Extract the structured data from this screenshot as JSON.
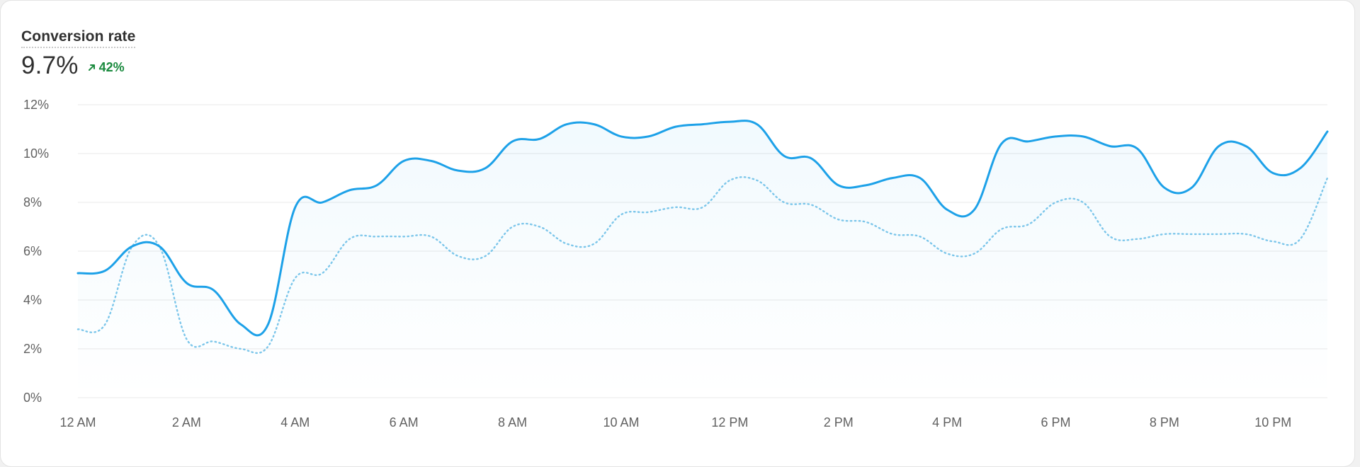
{
  "card": {
    "title": "Conversion rate",
    "value": "9.7%",
    "change": "42%",
    "change_direction": "up",
    "change_color": "#1a8a3e"
  },
  "colors": {
    "primary_line": "#1da1e8",
    "comparison_line": "#7cc6ea",
    "gridline": "#e8e8e8",
    "tick_text": "#616161"
  },
  "chart_data": {
    "type": "area",
    "x_tick_labels": [
      "12 AM",
      "2 AM",
      "4 AM",
      "6 AM",
      "8 AM",
      "10 AM",
      "12 PM",
      "2 PM",
      "4 PM",
      "6 PM",
      "8 PM",
      "10 PM"
    ],
    "y_tick_labels": [
      "0%",
      "2%",
      "4%",
      "6%",
      "8%",
      "10%",
      "12%"
    ],
    "ylim": [
      0,
      12
    ],
    "xlim": [
      0,
      23
    ],
    "grid": true,
    "series": [
      {
        "style": "solid-filled",
        "x": [
          0,
          0.5,
          1,
          1.5,
          2,
          2.5,
          3,
          3.5,
          4,
          4.5,
          5,
          5.5,
          6,
          6.5,
          7,
          7.5,
          8,
          8.5,
          9,
          9.5,
          10,
          10.5,
          11,
          11.5,
          12,
          12.5,
          13,
          13.5,
          14,
          14.5,
          15,
          15.5,
          16,
          16.5,
          17,
          17.5,
          18,
          18.5,
          19,
          19.5,
          20,
          20.5,
          21,
          21.5,
          22,
          22.5,
          23
        ],
        "values": [
          5.1,
          5.2,
          6.2,
          6.2,
          4.7,
          4.4,
          3.0,
          3.0,
          7.8,
          8.0,
          8.5,
          8.7,
          9.7,
          9.7,
          9.3,
          9.4,
          10.5,
          10.6,
          11.2,
          11.2,
          10.7,
          10.7,
          11.1,
          11.2,
          11.3,
          11.2,
          9.9,
          9.8,
          8.7,
          8.7,
          9.0,
          9.0,
          7.7,
          7.7,
          10.4,
          10.5,
          10.7,
          10.7,
          10.3,
          10.2,
          8.6,
          8.6,
          10.3,
          10.3,
          9.2,
          9.4,
          10.9
        ]
      },
      {
        "style": "dotted",
        "x": [
          0,
          0.5,
          1,
          1.5,
          2,
          2.5,
          3,
          3.5,
          4,
          4.5,
          5,
          5.5,
          6,
          6.5,
          7,
          7.5,
          8,
          8.5,
          9,
          9.5,
          10,
          10.5,
          11,
          11.5,
          12,
          12.5,
          13,
          13.5,
          14,
          14.5,
          15,
          15.5,
          16,
          16.5,
          17,
          17.5,
          18,
          18.5,
          19,
          19.5,
          20,
          20.5,
          21,
          21.5,
          22,
          22.5,
          23
        ],
        "values": [
          2.8,
          3.0,
          6.2,
          6.2,
          2.4,
          2.3,
          2.0,
          2.1,
          4.9,
          5.1,
          6.5,
          6.6,
          6.6,
          6.6,
          5.8,
          5.8,
          7.0,
          7.0,
          6.3,
          6.3,
          7.5,
          7.6,
          7.8,
          7.8,
          8.9,
          8.9,
          8.0,
          7.9,
          7.3,
          7.2,
          6.7,
          6.6,
          5.9,
          5.9,
          6.9,
          7.1,
          8.0,
          8.0,
          6.6,
          6.5,
          6.7,
          6.7,
          6.7,
          6.7,
          6.4,
          6.5,
          9.0
        ]
      }
    ]
  }
}
